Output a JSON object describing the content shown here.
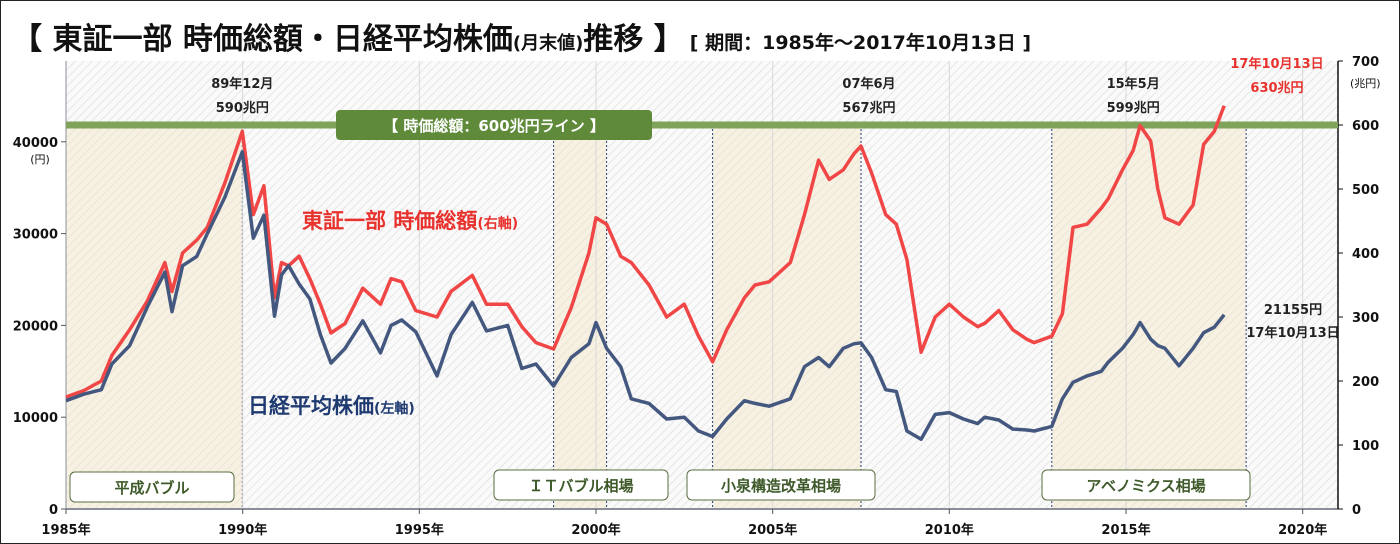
{
  "title": {
    "main": "【 東証一部 時価総額・日経平均株価",
    "sub": "(月末値)",
    "main_end": "推移 】",
    "period": "[ 期間：1985年～2017年10月13日 ]"
  },
  "chart_data": {
    "type": "line",
    "title": "東証一部 時価総額・日経平均株価(月末値)推移",
    "subtitle": "期間：1985年～2017年10月13日",
    "xlim": [
      1985,
      2021
    ],
    "x_ticks": [
      1985,
      1990,
      1995,
      2000,
      2005,
      2010,
      2015,
      2020
    ],
    "x_tick_labels": [
      "1985年",
      "1990年",
      "1995年",
      "2000年",
      "2005年",
      "2010年",
      "2015年",
      "2020年"
    ],
    "y_left": {
      "label": "(円)",
      "ylim": [
        0,
        48800
      ],
      "ticks": [
        0,
        10000,
        20000,
        30000,
        40000
      ],
      "tick_labels": [
        "0",
        "10000",
        "20000",
        "30000",
        "40000"
      ]
    },
    "y_right": {
      "label": "(兆円)",
      "ylim": [
        0,
        700
      ],
      "ticks": [
        0,
        100,
        200,
        300,
        400,
        500,
        600,
        700
      ],
      "tick_labels": [
        "0",
        "100",
        "200",
        "300",
        "400",
        "500",
        "600",
        "700"
      ]
    },
    "grid": true,
    "series": [
      {
        "name": "東証一部 時価総額",
        "axis_note": "(右軸)",
        "axis": "right",
        "color": "#f04646",
        "x": [
          1985.0,
          1985.5,
          1986.0,
          1986.3,
          1986.8,
          1987.3,
          1987.8,
          1988.0,
          1988.3,
          1988.7,
          1989.0,
          1989.5,
          1989.99,
          1990.3,
          1990.6,
          1990.9,
          1991.1,
          1991.3,
          1991.6,
          1991.9,
          1992.2,
          1992.5,
          1992.9,
          1993.4,
          1993.9,
          1994.2,
          1994.5,
          1994.9,
          1995.5,
          1995.9,
          1996.5,
          1996.9,
          1997.5,
          1997.9,
          1998.3,
          1998.8,
          1999.3,
          1999.8,
          2000.0,
          2000.3,
          2000.7,
          2001.0,
          2001.5,
          2002.0,
          2002.5,
          2002.9,
          2003.3,
          2003.7,
          2004.2,
          2004.5,
          2004.9,
          2005.5,
          2005.9,
          2006.3,
          2006.6,
          2007.0,
          2007.3,
          2007.5,
          2007.8,
          2008.2,
          2008.5,
          2008.8,
          2009.2,
          2009.6,
          2010.0,
          2010.4,
          2010.8,
          2011.0,
          2011.4,
          2011.8,
          2012.2,
          2012.4,
          2012.9,
          2013.2,
          2013.5,
          2013.9,
          2014.3,
          2014.5,
          2014.9,
          2015.2,
          2015.4,
          2015.7,
          2015.9,
          2016.1,
          2016.5,
          2016.9,
          2017.2,
          2017.5,
          2017.78
        ],
        "values": [
          175,
          185,
          200,
          240,
          280,
          325,
          385,
          340,
          400,
          420,
          440,
          510,
          590,
          460,
          505,
          330,
          385,
          380,
          395,
          360,
          320,
          275,
          290,
          345,
          320,
          360,
          355,
          310,
          300,
          340,
          365,
          320,
          320,
          285,
          260,
          250,
          315,
          400,
          455,
          445,
          395,
          385,
          350,
          300,
          320,
          270,
          230,
          280,
          330,
          350,
          355,
          385,
          460,
          545,
          515,
          530,
          555,
          567,
          525,
          460,
          445,
          390,
          245,
          300,
          320,
          300,
          285,
          290,
          310,
          280,
          265,
          260,
          270,
          305,
          440,
          445,
          470,
          485,
          530,
          560,
          599,
          575,
          500,
          455,
          445,
          475,
          570,
          590,
          630
        ]
      },
      {
        "name": "日経平均株価",
        "axis_note": "(左軸)",
        "axis": "left",
        "color": "#44587f",
        "x": [
          1985.0,
          1985.5,
          1986.0,
          1986.3,
          1986.8,
          1987.3,
          1987.8,
          1988.0,
          1988.3,
          1988.7,
          1989.0,
          1989.5,
          1989.99,
          1990.3,
          1990.6,
          1990.9,
          1991.1,
          1991.3,
          1991.6,
          1991.9,
          1992.2,
          1992.5,
          1992.9,
          1993.4,
          1993.9,
          1994.2,
          1994.5,
          1994.9,
          1995.5,
          1995.9,
          1996.5,
          1996.9,
          1997.5,
          1997.9,
          1998.3,
          1998.8,
          1999.3,
          1999.8,
          2000.0,
          2000.3,
          2000.7,
          2001.0,
          2001.5,
          2002.0,
          2002.5,
          2002.9,
          2003.3,
          2003.7,
          2004.2,
          2004.5,
          2004.9,
          2005.5,
          2005.9,
          2006.3,
          2006.6,
          2007.0,
          2007.3,
          2007.5,
          2007.8,
          2008.2,
          2008.5,
          2008.8,
          2009.2,
          2009.6,
          2010.0,
          2010.4,
          2010.8,
          2011.0,
          2011.4,
          2011.8,
          2012.2,
          2012.4,
          2012.9,
          2013.2,
          2013.5,
          2013.9,
          2014.3,
          2014.5,
          2014.9,
          2015.2,
          2015.4,
          2015.7,
          2015.9,
          2016.1,
          2016.5,
          2016.9,
          2017.2,
          2017.5,
          2017.78
        ],
        "values": [
          11800,
          12500,
          13000,
          15800,
          17800,
          22000,
          25800,
          21500,
          26500,
          27500,
          30000,
          34000,
          38900,
          29500,
          32000,
          21000,
          25500,
          26500,
          24500,
          22900,
          19000,
          15900,
          17500,
          20500,
          17000,
          20000,
          20600,
          19300,
          14500,
          19000,
          22500,
          19400,
          20000,
          15300,
          15800,
          13400,
          16500,
          18000,
          20300,
          17500,
          15500,
          12000,
          11500,
          9800,
          10000,
          8500,
          7900,
          9800,
          11800,
          11500,
          11200,
          12000,
          15500,
          16500,
          15500,
          17500,
          18000,
          18100,
          16500,
          13000,
          12800,
          8500,
          7600,
          10300,
          10500,
          9800,
          9300,
          10000,
          9700,
          8700,
          8600,
          8500,
          9000,
          12000,
          13800,
          14500,
          15000,
          16000,
          17500,
          19000,
          20300,
          18500,
          17800,
          17500,
          15600,
          17500,
          19200,
          19800,
          21155
        ]
      }
    ],
    "reference_line": {
      "value": 600,
      "axis": "right",
      "label": "【 時価総額：600兆円ライン 】",
      "color": "#5e8a3a"
    },
    "eras": [
      {
        "label": "平成バブル",
        "start": 1985.0,
        "end": 1989.99
      },
      {
        "label": "ＩＴバブル相場",
        "start": 1998.8,
        "end": 2000.3
      },
      {
        "label": "小泉構造改革相場",
        "start": 2003.3,
        "end": 2007.5
      },
      {
        "label": "アベノミクス相場",
        "start": 2012.9,
        "end": 2018.4
      }
    ],
    "annotations": [
      {
        "date": "89年12月",
        "value": "590兆円",
        "x": 1989.99
      },
      {
        "date": "07年6月",
        "value": "567兆円",
        "x": 2007.5
      },
      {
        "date": "15年5月",
        "value": "599兆円",
        "x": 2015.4
      },
      {
        "date": "17年10月13日",
        "value": "630兆円",
        "x": 2017.78,
        "color": "#e8322e"
      },
      {
        "date": "17年10月13日",
        "value": "21155円",
        "x": 2017.78
      }
    ],
    "legend": [
      {
        "text": "東証一部 時価総額",
        "note": "(右軸)",
        "placement": "center"
      },
      {
        "text": "日経平均株価",
        "note": "(左軸)",
        "placement": "lower-left"
      }
    ]
  }
}
